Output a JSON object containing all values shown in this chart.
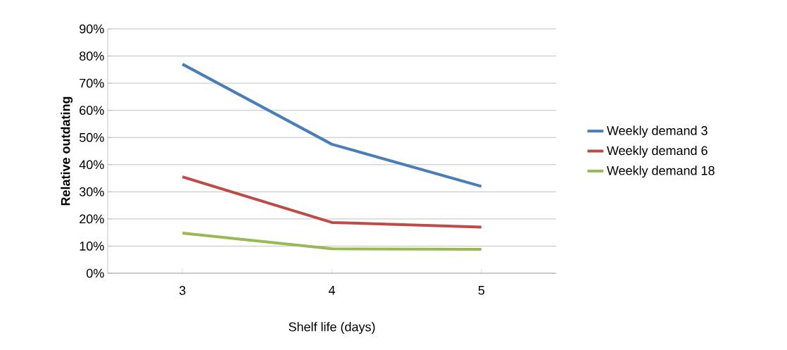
{
  "chart_data": {
    "type": "line",
    "xlabel": "Shelf life (days)",
    "ylabel": "Relative outdating",
    "categories": [
      "3",
      "4",
      "5"
    ],
    "series": [
      {
        "name": "Weekly demand 3",
        "color": "#4a7ebb",
        "values": [
          77,
          47.5,
          32
        ]
      },
      {
        "name": "Weekly demand 6",
        "color": "#be4b48",
        "values": [
          35.5,
          18.7,
          17
        ]
      },
      {
        "name": "Weekly demand 18",
        "color": "#98b954",
        "values": [
          14.8,
          9,
          8.8
        ]
      }
    ],
    "ylim": [
      0,
      90
    ],
    "yticks": [
      {
        "value": 0,
        "label": "0%"
      },
      {
        "value": 10,
        "label": "10%"
      },
      {
        "value": 20,
        "label": "20%"
      },
      {
        "value": 30,
        "label": "30%"
      },
      {
        "value": 40,
        "label": "40%"
      },
      {
        "value": 50,
        "label": "50%"
      },
      {
        "value": 60,
        "label": "60%"
      },
      {
        "value": 70,
        "label": "70%"
      },
      {
        "value": 80,
        "label": "80%"
      },
      {
        "value": 90,
        "label": "90%"
      }
    ],
    "grid": "y",
    "legend": "right",
    "marker": "none",
    "line_style": "solid"
  }
}
